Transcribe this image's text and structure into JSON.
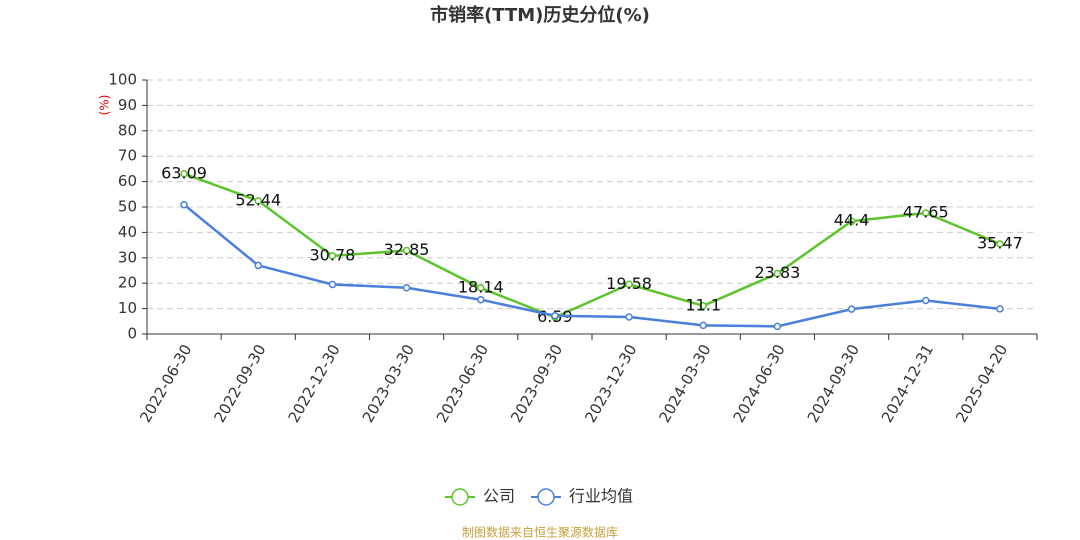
{
  "chart_data": {
    "type": "line",
    "title": "市销率(TTM)历史分位(%)",
    "y_label": "(%)",
    "categories": [
      "2022-06-30",
      "2022-09-30",
      "2022-12-30",
      "2023-03-30",
      "2023-06-30",
      "2023-09-30",
      "2023-12-30",
      "2024-03-30",
      "2024-06-30",
      "2024-09-30",
      "2024-12-31",
      "2025-04-20"
    ],
    "series": [
      {
        "name": "公司",
        "color": "#5cc42a",
        "values": [
          63.09,
          52.44,
          30.78,
          32.85,
          18.14,
          6.59,
          19.58,
          11.1,
          23.83,
          44.4,
          47.65,
          35.47
        ],
        "data_labels": true
      },
      {
        "name": "行业均值",
        "color": "#4a7fdc",
        "values": [
          50.9,
          27,
          19.5,
          18.2,
          13.5,
          7.2,
          6.7,
          3.4,
          3.0,
          9.8,
          13.2,
          9.9
        ],
        "data_labels": false
      }
    ],
    "ylim": [
      0,
      100
    ],
    "yticks": [
      0,
      10,
      20,
      30,
      40,
      50,
      60,
      70,
      80,
      90,
      100
    ],
    "grid": true,
    "source": "制图数据来自恒生聚源数据库"
  }
}
